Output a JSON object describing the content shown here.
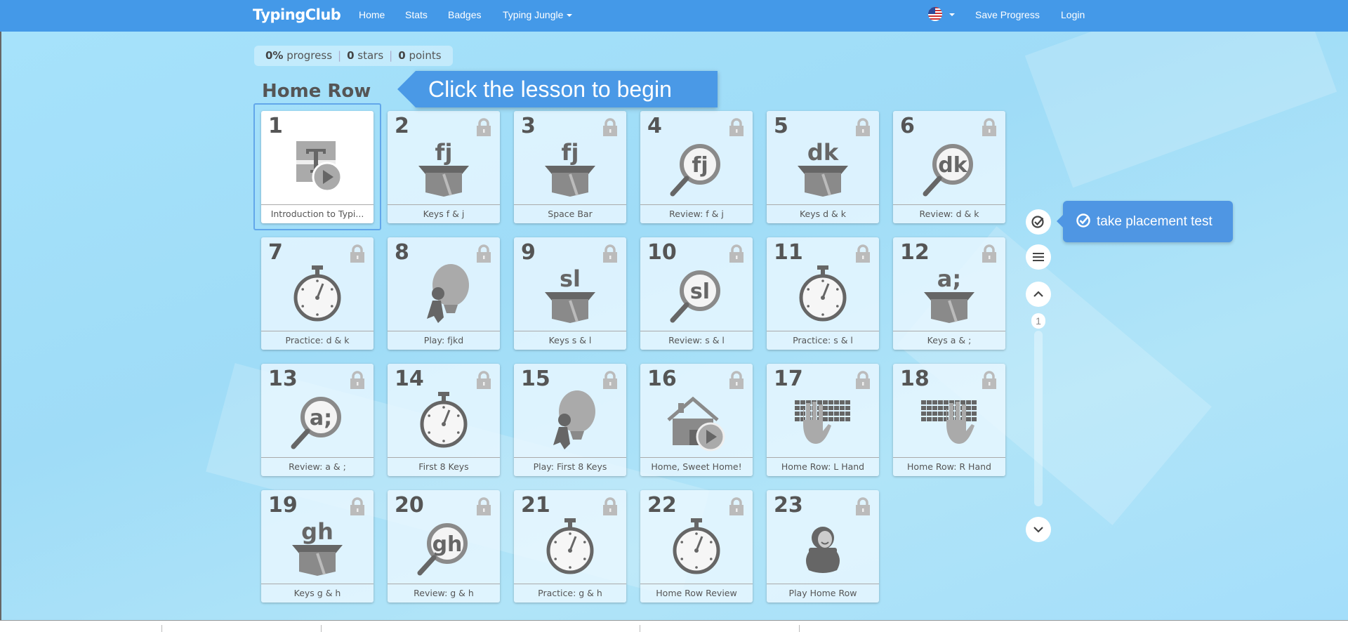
{
  "nav": {
    "brand": "TypingClub",
    "links": [
      "Home",
      "Stats",
      "Badges",
      "Typing Jungle"
    ],
    "save": "Save Progress",
    "login": "Login",
    "language": "us-flag-icon"
  },
  "stats": {
    "progress_value": "0%",
    "progress_label": "progress",
    "stars_value": "0",
    "stars_label": "stars",
    "points_value": "0",
    "points_label": "points"
  },
  "section_title": "Home Row",
  "lessons": [
    {
      "n": "1",
      "label": "Introduction to Typi...",
      "icon": "intro",
      "locked": false
    },
    {
      "n": "2",
      "label": "Keys f & j",
      "icon": "box",
      "text": "fj",
      "locked": true
    },
    {
      "n": "3",
      "label": "Space Bar",
      "icon": "box",
      "text": "fj",
      "locked": true
    },
    {
      "n": "4",
      "label": "Review: f & j",
      "icon": "magnifier",
      "text": "fj",
      "locked": true
    },
    {
      "n": "5",
      "label": "Keys d & k",
      "icon": "box",
      "text": "dk",
      "locked": true
    },
    {
      "n": "6",
      "label": "Review: d & k",
      "icon": "magnifier",
      "text": "dk",
      "locked": true
    },
    {
      "n": "7",
      "label": "Practice: d & k",
      "icon": "stopwatch",
      "locked": true
    },
    {
      "n": "8",
      "label": "Play: fjkd",
      "icon": "balloon",
      "locked": true
    },
    {
      "n": "9",
      "label": "Keys s & l",
      "icon": "box",
      "text": "sl",
      "locked": true
    },
    {
      "n": "10",
      "label": "Review: s & l",
      "icon": "magnifier",
      "text": "sl",
      "locked": true
    },
    {
      "n": "11",
      "label": "Practice: s & l",
      "icon": "stopwatch",
      "locked": true
    },
    {
      "n": "12",
      "label": "Keys a & ;",
      "icon": "box",
      "text": "a;",
      "locked": true
    },
    {
      "n": "13",
      "label": "Review: a & ;",
      "icon": "magnifier",
      "text": "a;",
      "locked": true
    },
    {
      "n": "14",
      "label": "First 8 Keys",
      "icon": "stopwatch",
      "locked": true
    },
    {
      "n": "15",
      "label": "Play: First 8 Keys",
      "icon": "balloon",
      "locked": true
    },
    {
      "n": "16",
      "label": "Home, Sweet Home!",
      "icon": "house-video",
      "locked": true
    },
    {
      "n": "17",
      "label": "Home Row: L Hand",
      "icon": "keyboard-left-hand",
      "locked": true
    },
    {
      "n": "18",
      "label": "Home Row: R Hand",
      "icon": "keyboard-right-hand",
      "locked": true
    },
    {
      "n": "19",
      "label": "Keys g & h",
      "icon": "box",
      "text": "gh",
      "locked": true
    },
    {
      "n": "20",
      "label": "Review: g & h",
      "icon": "magnifier",
      "text": "gh",
      "locked": true
    },
    {
      "n": "21",
      "label": "Practice: g & h",
      "icon": "stopwatch",
      "locked": true
    },
    {
      "n": "22",
      "label": "Home Row Review",
      "icon": "stopwatch",
      "locked": true
    },
    {
      "n": "23",
      "label": "Play Home Row",
      "icon": "ninja-pot",
      "locked": true
    }
  ],
  "tooltip_begin": "Click the lesson to begin",
  "tooltip_placement": "take placement test",
  "page_indicator": "1",
  "colors": {
    "navbar": "#4499e8",
    "tooltip": "#4a99e6",
    "background": "#a6e2fb"
  }
}
